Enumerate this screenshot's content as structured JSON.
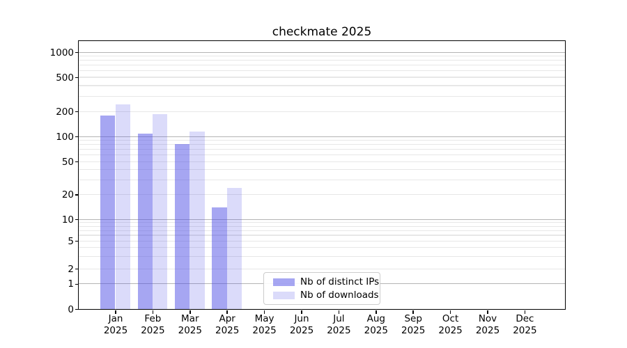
{
  "colors": {
    "bar_base": "#4d4de5",
    "bar_ips_fill": "rgba(77,77,229,0.5)",
    "bar_downloads_fill": "rgba(77,77,229,0.2)",
    "grid_major": "#b4b4b4",
    "grid_minor": "#e7e7e7",
    "spine": "#000000",
    "legend_border": "#cccccc"
  },
  "chart_data": {
    "type": "bar",
    "title": "checkmate 2025",
    "categories": [
      "Jan 2025",
      "Feb 2025",
      "Mar 2025",
      "Apr 2025",
      "May 2025",
      "Jun 2025",
      "Jul 2025",
      "Aug 2025",
      "Sep 2025",
      "Oct 2025",
      "Nov 2025",
      "Dec 2025"
    ],
    "series": [
      {
        "name": "Nb of distinct IPs",
        "color": "rgba(77,77,229,0.5)",
        "values": [
          180,
          108,
          81,
          14,
          0,
          0,
          0,
          0,
          0,
          0,
          0,
          0
        ]
      },
      {
        "name": "Nb of downloads",
        "color": "rgba(77,77,229,0.2)",
        "values": [
          240,
          187,
          115,
          24,
          0,
          0,
          0,
          0,
          0,
          0,
          0,
          0
        ]
      }
    ],
    "xlabel": "",
    "ylabel": "",
    "yscale": "symlog",
    "yticks": [
      0,
      1,
      2,
      5,
      10,
      20,
      50,
      100,
      200,
      500,
      1000
    ],
    "ylim": [
      0,
      1500
    ],
    "grid": "horizontal, major and minor",
    "legend_position": "lower center"
  }
}
